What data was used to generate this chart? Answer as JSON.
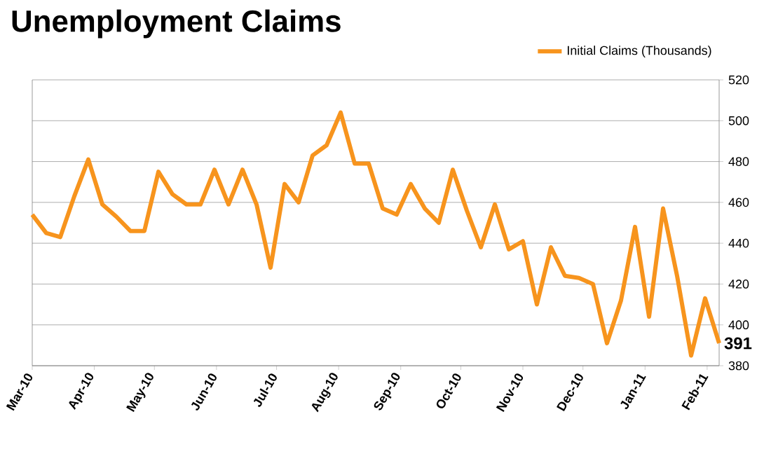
{
  "chart_data": {
    "type": "line",
    "title": "Unemployment Claims",
    "x": [
      "2010-03-01",
      "2010-03-08",
      "2010-03-15",
      "2010-03-22",
      "2010-03-29",
      "2010-04-05",
      "2010-04-12",
      "2010-04-19",
      "2010-04-26",
      "2010-05-03",
      "2010-05-10",
      "2010-05-17",
      "2010-05-24",
      "2010-05-31",
      "2010-06-07",
      "2010-06-14",
      "2010-06-21",
      "2010-06-28",
      "2010-07-05",
      "2010-07-12",
      "2010-07-19",
      "2010-07-26",
      "2010-08-02",
      "2010-08-09",
      "2010-08-16",
      "2010-08-23",
      "2010-08-30",
      "2010-09-06",
      "2010-09-13",
      "2010-09-20",
      "2010-09-27",
      "2010-10-04",
      "2010-10-11",
      "2010-10-18",
      "2010-10-25",
      "2010-11-01",
      "2010-11-08",
      "2010-11-15",
      "2010-11-22",
      "2010-11-29",
      "2010-12-06",
      "2010-12-13",
      "2010-12-20",
      "2010-12-27",
      "2011-01-03",
      "2011-01-10",
      "2011-01-17",
      "2011-01-24",
      "2011-01-31",
      "2011-02-07"
    ],
    "series": [
      {
        "name": "Initial Claims (Thousands)",
        "color": "#f7941d",
        "values": [
          454,
          445,
          443,
          463,
          481,
          459,
          453,
          446,
          446,
          475,
          464,
          459,
          459,
          476,
          459,
          476,
          459,
          428,
          469,
          460,
          483,
          488,
          504,
          479,
          479,
          457,
          454,
          469,
          457,
          450,
          476,
          456,
          438,
          459,
          437,
          441,
          410,
          438,
          424,
          423,
          420,
          391,
          412,
          448,
          404,
          457,
          424,
          385,
          413,
          391
        ],
        "value_labels": [
          null,
          null,
          null,
          null,
          null,
          null,
          null,
          null,
          null,
          null,
          null,
          null,
          null,
          null,
          null,
          null,
          null,
          null,
          null,
          null,
          null,
          null,
          null,
          null,
          null,
          null,
          null,
          null,
          null,
          null,
          null,
          null,
          null,
          null,
          null,
          null,
          null,
          null,
          null,
          null,
          null,
          null,
          null,
          null,
          null,
          null,
          null,
          null,
          null,
          "391"
        ]
      }
    ],
    "xlim": [
      "2010-03-01",
      "2011-02-07"
    ],
    "xticks": [
      {
        "value": "2010-03-01",
        "label": "Mar-10"
      },
      {
        "value": "2010-04-01",
        "label": "Apr-10"
      },
      {
        "value": "2010-05-01",
        "label": "May-10"
      },
      {
        "value": "2010-06-01",
        "label": "Jun-10"
      },
      {
        "value": "2010-07-01",
        "label": "Jul-10"
      },
      {
        "value": "2010-08-01",
        "label": "Aug-10"
      },
      {
        "value": "2010-09-01",
        "label": "Sep-10"
      },
      {
        "value": "2010-10-01",
        "label": "Oct-10"
      },
      {
        "value": "2010-11-01",
        "label": "Nov-10"
      },
      {
        "value": "2010-12-01",
        "label": "Dec-10"
      },
      {
        "value": "2011-01-01",
        "label": "Jan-11"
      },
      {
        "value": "2011-02-01",
        "label": "Feb-11"
      }
    ],
    "ylim": [
      380,
      520
    ],
    "yticks": [
      380,
      400,
      420,
      440,
      460,
      480,
      500,
      520
    ],
    "grid": "y",
    "legend": "top right",
    "marker": "none",
    "line_style": "solid"
  }
}
